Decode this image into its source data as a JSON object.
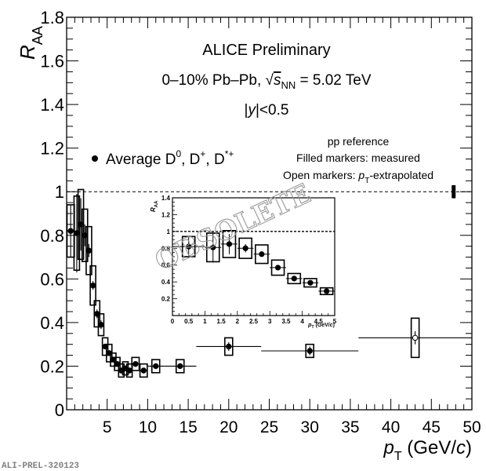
{
  "chart_data": {
    "type": "scatter",
    "title": "ALICE Preliminary",
    "subtitle_lines": [
      "0–10% Pb–Pb, √sNN = 5.02 TeV",
      "|y|<0.5"
    ],
    "xlabel": "pT (GeV/c)",
    "ylabel": "RAA",
    "xlim": [
      0,
      50
    ],
    "ylim": [
      0,
      1.8
    ],
    "xticks": [
      5,
      10,
      15,
      20,
      25,
      30,
      35,
      40,
      45,
      50
    ],
    "yticks": [
      0,
      0.2,
      0.4,
      0.6,
      0.8,
      1,
      1.2,
      1.4,
      1.6,
      1.8
    ],
    "ytick_labels": [
      "0",
      "0.2",
      "0.4",
      "0.6",
      "0.8",
      "1",
      "1.2",
      "1.4",
      "1.6",
      "1.8"
    ],
    "reference_line": 1,
    "normalization_uncertainty": {
      "x": 47.75,
      "low": 0.97,
      "high": 1.03
    },
    "legend": {
      "entry": "Average D0, D+, D*+",
      "placement": "middle-left",
      "notes": [
        "pp reference",
        "Filled markers: measured",
        "Open markers: pT-extrapolated"
      ]
    },
    "series": [
      {
        "name": "Average D0, D+, D*+",
        "points": [
          {
            "x": 0.5,
            "xlo": 0,
            "xhi": 1,
            "y": 0.82,
            "stat": 0.12,
            "syst": 0.12,
            "open": false
          },
          {
            "x": 1.25,
            "xlo": 1,
            "xhi": 1.5,
            "y": 0.81,
            "stat": 0.18,
            "syst": 0.17,
            "open": false
          },
          {
            "x": 1.75,
            "xlo": 1.5,
            "xhi": 2,
            "y": 0.85,
            "stat": 0.12,
            "syst": 0.16,
            "open": false
          },
          {
            "x": 2.25,
            "xlo": 2,
            "xhi": 2.5,
            "y": 0.8,
            "stat": 0.05,
            "syst": 0.12,
            "open": false
          },
          {
            "x": 2.75,
            "xlo": 2.5,
            "xhi": 3,
            "y": 0.73,
            "stat": 0.03,
            "syst": 0.11,
            "open": false
          },
          {
            "x": 3.25,
            "xlo": 3,
            "xhi": 3.5,
            "y": 0.57,
            "stat": 0.02,
            "syst": 0.09,
            "open": false
          },
          {
            "x": 3.75,
            "xlo": 3.5,
            "xhi": 4,
            "y": 0.44,
            "stat": 0.02,
            "syst": 0.06,
            "open": false
          },
          {
            "x": 4.25,
            "xlo": 4,
            "xhi": 4.5,
            "y": 0.39,
            "stat": 0.02,
            "syst": 0.05,
            "open": false
          },
          {
            "x": 4.75,
            "xlo": 4.5,
            "xhi": 5,
            "y": 0.29,
            "stat": 0.01,
            "syst": 0.04,
            "open": false
          },
          {
            "x": 5.25,
            "xlo": 5,
            "xhi": 5.5,
            "y": 0.26,
            "stat": 0.01,
            "syst": 0.04,
            "open": false
          },
          {
            "x": 5.75,
            "xlo": 5.5,
            "xhi": 6,
            "y": 0.23,
            "stat": 0.01,
            "syst": 0.03,
            "open": false
          },
          {
            "x": 6.25,
            "xlo": 6,
            "xhi": 6.5,
            "y": 0.21,
            "stat": 0.01,
            "syst": 0.03,
            "open": false
          },
          {
            "x": 6.75,
            "xlo": 6.5,
            "xhi": 7,
            "y": 0.18,
            "stat": 0.01,
            "syst": 0.03,
            "open": false
          },
          {
            "x": 7.25,
            "xlo": 7,
            "xhi": 7.5,
            "y": 0.19,
            "stat": 0.01,
            "syst": 0.03,
            "open": false
          },
          {
            "x": 7.75,
            "xlo": 7.5,
            "xhi": 8,
            "y": 0.18,
            "stat": 0.01,
            "syst": 0.03,
            "open": false
          },
          {
            "x": 8.5,
            "xlo": 8,
            "xhi": 9,
            "y": 0.21,
            "stat": 0.01,
            "syst": 0.03,
            "open": false
          },
          {
            "x": 9.5,
            "xlo": 9,
            "xhi": 10,
            "y": 0.18,
            "stat": 0.01,
            "syst": 0.03,
            "open": false
          },
          {
            "x": 11,
            "xlo": 10,
            "xhi": 12,
            "y": 0.2,
            "stat": 0.01,
            "syst": 0.03,
            "open": false
          },
          {
            "x": 14,
            "xlo": 12,
            "xhi": 16,
            "y": 0.2,
            "stat": 0.01,
            "syst": 0.03,
            "open": false
          },
          {
            "x": 20,
            "xlo": 16,
            "xhi": 24,
            "y": 0.29,
            "stat": 0.02,
            "syst": 0.04,
            "open": false
          },
          {
            "x": 30,
            "xlo": 24,
            "xhi": 36,
            "y": 0.27,
            "stat": 0.02,
            "syst": 0.03,
            "open": false
          },
          {
            "x": 43,
            "xlo": 36,
            "xhi": 50,
            "y": 0.33,
            "stat": 0.03,
            "syst": 0.09,
            "open": true
          }
        ]
      }
    ],
    "inset": {
      "xlabel": "pT (GeV/c)",
      "ylabel": "RAA",
      "xlim": [
        0,
        5
      ],
      "ylim": [
        0,
        1.4
      ],
      "xticks": [
        0,
        0.5,
        1,
        1.5,
        2,
        2.5,
        3,
        3.5,
        4,
        4.5,
        5
      ],
      "xtick_labels": [
        "0",
        "0.5",
        "1",
        "1.5",
        "2",
        "2.5",
        "3",
        "3.5",
        "4",
        "4.5",
        "5"
      ],
      "yticks": [
        0.2,
        0.4,
        0.6,
        0.8,
        1,
        1.2,
        1.4
      ],
      "ytick_labels": [
        "0.2",
        "0.4",
        "0.6",
        "0.8",
        "1",
        "1.2",
        "1.4"
      ],
      "reference_line": 1
    }
  },
  "labels": {
    "title": "ALICE Preliminary",
    "system_prefix": "0–10% Pb–Pb, ",
    "sqrt": "√",
    "s": "s",
    "nn": "NN",
    "energy": " = 5.02 TeV",
    "rapidity_bar1": "|",
    "rapidity_y": "y",
    "rapidity_rest": "|<0.5",
    "legend_avg": "Average D",
    "legend_sup0": "0",
    "legend_comma1": ", D",
    "legend_supplus": "+",
    "legend_comma2": ", D",
    "legend_supstar": "*+",
    "pp_ref": "pp reference",
    "filled": "Filled markers: measured",
    "open_prefix": "Open markers: ",
    "open_p": "p",
    "open_T": "T",
    "open_suffix": "-extrapolated",
    "y_R": "R",
    "y_AA": "AA",
    "x_p": "p",
    "x_T": "T",
    "x_units_open": " (GeV/",
    "x_c": "c",
    "x_units_close": ")",
    "inset_x_units": " (GeV/",
    "watermark": "OBSOLETE",
    "preliminary_id": "ALI-PREL-320123"
  }
}
